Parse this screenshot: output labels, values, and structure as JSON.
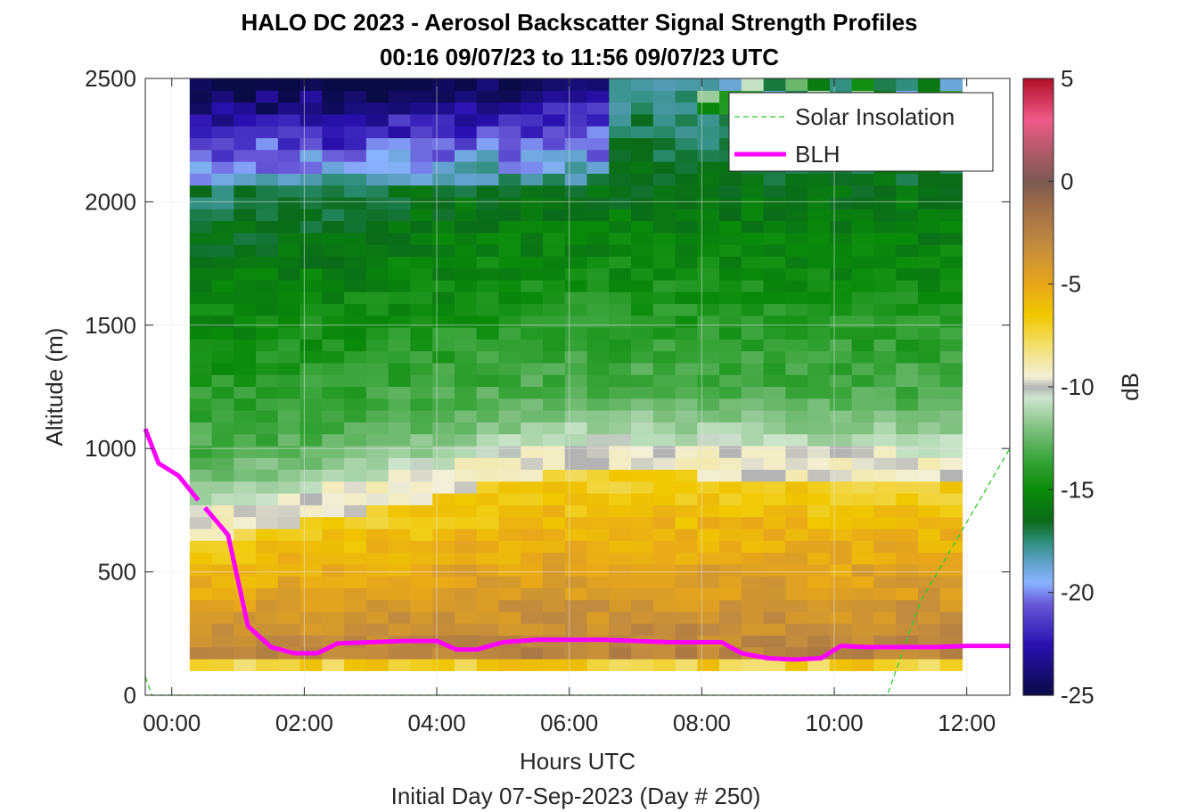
{
  "chart_data": {
    "type": "heatmap",
    "title": "HALO DC 2023 - Aerosol Backscatter Signal Strength Profiles",
    "subtitle": "00:16 09/07/23 to 11:56 09/07/23  UTC",
    "xlabel": "Hours UTC",
    "xlabel2": "Initial Day 07-Sep-2023 (Day # 250)",
    "ylabel": "Altitude (m)",
    "colorbar_label": "dB",
    "xlim": [
      -0.4,
      12.65
    ],
    "ylim": [
      0,
      2500
    ],
    "x_ticks": [
      0,
      2,
      4,
      6,
      8,
      10,
      12
    ],
    "x_tick_labels": [
      "00:00",
      "02:00",
      "04:00",
      "06:00",
      "08:00",
      "10:00",
      "12:00"
    ],
    "y_ticks": [
      0,
      500,
      1000,
      1500,
      2000,
      2500
    ],
    "y_tick_labels": [
      "0",
      "500",
      "1000",
      "1500",
      "2000",
      "2500"
    ],
    "clim": [
      -25,
      5
    ],
    "colorbar_ticks": [
      5,
      0,
      -5,
      -10,
      -15,
      -20,
      -25
    ],
    "colorbar_tick_labels": [
      "5",
      "0",
      "-5",
      "-10",
      "-15",
      "-20",
      "-25"
    ],
    "grid": true,
    "legend_position": "top-right",
    "heatmap_extent": {
      "x_start": 0.27,
      "x_end": 11.93,
      "y_bottom": 100,
      "y_top": 2500,
      "cols": 35,
      "rows": 50
    },
    "series": [
      {
        "name": "Solar Insolation",
        "style": "dashed",
        "color": "#2ecc2e",
        "x": [
          -0.4,
          -0.3,
          10.8,
          11.3,
          12.65
        ],
        "y": [
          75,
          0,
          0,
          380,
          1000
        ]
      },
      {
        "name": "BLH",
        "style": "solid",
        "color": "#ff00ff",
        "segments": [
          {
            "x": [
              -0.4,
              -0.2,
              0.1,
              0.4
            ],
            "y": [
              1080,
              940,
              890,
              790
            ]
          },
          {
            "x": [
              0.5,
              0.85,
              1.15,
              1.5,
              1.85,
              2.2,
              2.5,
              3.0,
              3.5,
              4.0,
              4.3,
              4.6,
              5.0,
              5.5,
              6.0,
              6.5,
              7.0,
              7.5,
              8.0,
              8.3,
              8.6,
              9.0,
              9.4,
              9.8,
              10.1,
              10.5,
              11.0,
              11.5,
              12.0,
              12.65
            ],
            "y": [
              760,
              650,
              280,
              195,
              170,
              170,
              210,
              215,
              220,
              220,
              185,
              185,
              215,
              225,
              225,
              225,
              220,
              215,
              215,
              215,
              170,
              150,
              145,
              150,
              200,
              195,
              195,
              195,
              200,
              200
            ]
          }
        ]
      }
    ],
    "colors": {
      "blh": "#ff00ff",
      "solar": "#2ecc2e",
      "nodata": "#b4b4b4",
      "grid": "#e6e6e6"
    },
    "colormap_stops": [
      {
        "db": -25,
        "color": "#0a0a46"
      },
      {
        "db": -22.5,
        "color": "#2a10b0"
      },
      {
        "db": -20.5,
        "color": "#6a5ad8"
      },
      {
        "db": -19.5,
        "color": "#8ab4ff"
      },
      {
        "db": -18.5,
        "color": "#5fa0c8"
      },
      {
        "db": -17.5,
        "color": "#2f8f7a"
      },
      {
        "db": -16.5,
        "color": "#0a6a1a"
      },
      {
        "db": -15,
        "color": "#0a8a0a"
      },
      {
        "db": -13.5,
        "color": "#39a43a"
      },
      {
        "db": -12,
        "color": "#7fc080"
      },
      {
        "db": -10.5,
        "color": "#cfe6cf"
      },
      {
        "db": -10,
        "color": "#b4b4b4"
      },
      {
        "db": -9.5,
        "color": "#f2f0d8"
      },
      {
        "db": -8,
        "color": "#f2e070"
      },
      {
        "db": -6.5,
        "color": "#f0c800"
      },
      {
        "db": -5,
        "color": "#e8a81a"
      },
      {
        "db": -3,
        "color": "#c08a40"
      },
      {
        "db": -1,
        "color": "#9a6a48"
      },
      {
        "db": 0,
        "color": "#7a5a52"
      },
      {
        "db": 1.5,
        "color": "#b05a6a"
      },
      {
        "db": 3,
        "color": "#f05a8a"
      },
      {
        "db": 5,
        "color": "#b0102a"
      }
    ]
  }
}
